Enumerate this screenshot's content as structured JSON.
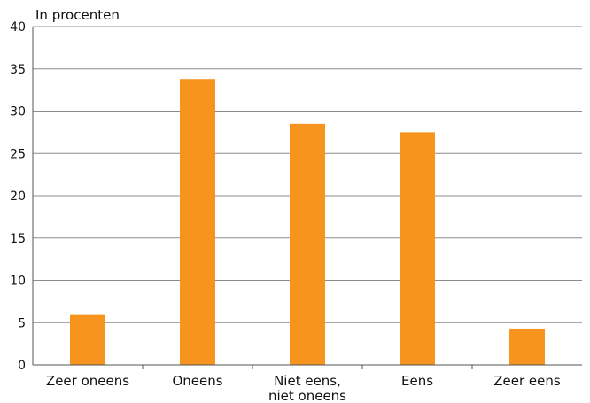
{
  "chart_data": {
    "type": "bar",
    "title": "",
    "ylabel": "In procenten",
    "xlabel": "",
    "categories": [
      "Zeer oneens",
      "Oneens",
      "Niet eens,\nniet oneens",
      "Eens",
      "Zeer eens"
    ],
    "values": [
      5.9,
      33.8,
      28.5,
      27.5,
      4.3
    ],
    "ylim": [
      0,
      40
    ],
    "yticks": [
      0,
      5,
      10,
      15,
      20,
      25,
      30,
      35,
      40
    ],
    "grid": true,
    "legend": "none",
    "bar_color": "#F7941D",
    "grid_color": "#8C8C8C"
  }
}
